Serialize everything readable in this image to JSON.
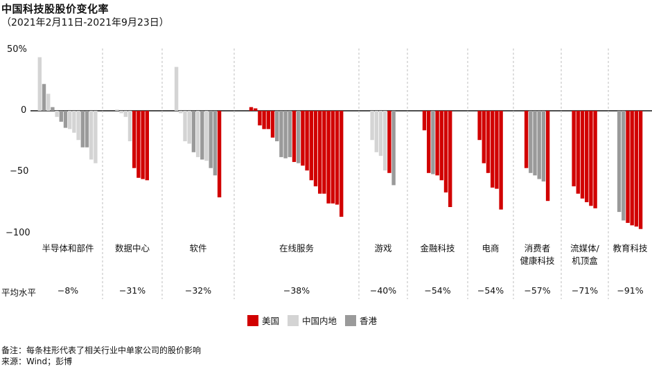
{
  "title": "中国科技股股价变化率",
  "subtitle": "（2021年2月11日-2021年9月23日）",
  "avg_label": "平均水平",
  "notes": [
    "备注：每条柱形代表了相关行业中单家公司的股价影响",
    "来源：Wind；彭博"
  ],
  "colors": {
    "美国": "#d10000",
    "中国内地": "#d4d4d4",
    "香港": "#9a9a9a"
  },
  "chart_data": {
    "type": "bar",
    "y_ticks": [
      "50%",
      "0",
      "−50",
      "−100"
    ],
    "ylim": [
      -100,
      50
    ],
    "legend": [
      "美国",
      "中国内地",
      "香港"
    ],
    "groups": [
      {
        "name": "半导体和部件",
        "average": "−8%",
        "bars": [
          [
            "中国内地",
            44
          ],
          [
            "香港",
            22
          ],
          [
            "中国内地",
            14
          ],
          [
            "香港",
            3
          ],
          [
            "中国内地",
            -5
          ],
          [
            "香港",
            -9
          ],
          [
            "香港",
            -14
          ],
          [
            "中国内地",
            -15
          ],
          [
            "中国内地",
            -18
          ],
          [
            "中国内地",
            -24
          ],
          [
            "香港",
            -30
          ],
          [
            "香港",
            -30
          ],
          [
            "中国内地",
            -40
          ],
          [
            "中国内地",
            -43
          ]
        ]
      },
      {
        "name": "数据中心",
        "average": "−31%",
        "bars": [
          [
            "中国内地",
            1
          ],
          [
            "中国内地",
            -2
          ],
          [
            "中国内地",
            -5
          ],
          [
            "中国内地",
            -25
          ],
          [
            "美国",
            -47
          ],
          [
            "美国",
            -55
          ],
          [
            "美国",
            -56
          ],
          [
            "美国",
            -57
          ]
        ]
      },
      {
        "name": "软件",
        "average": "−32%",
        "bars": [
          [
            "中国内地",
            36
          ],
          [
            "中国内地",
            -2
          ],
          [
            "中国内地",
            -25
          ],
          [
            "中国内地",
            -27
          ],
          [
            "香港",
            -34
          ],
          [
            "中国内地",
            -38
          ],
          [
            "香港",
            -40
          ],
          [
            "中国内地",
            -41
          ],
          [
            "香港",
            -47
          ],
          [
            "香港",
            -53
          ],
          [
            "美国",
            -71
          ]
        ]
      },
      {
        "name": "在线服务",
        "average": "−38%",
        "bars": [
          [
            "美国",
            3
          ],
          [
            "美国",
            2
          ],
          [
            "美国",
            -12
          ],
          [
            "美国",
            -15
          ],
          [
            "美国",
            -15
          ],
          [
            "美国",
            -22
          ],
          [
            "香港",
            -25
          ],
          [
            "香港",
            -38
          ],
          [
            "香港",
            -39
          ],
          [
            "香港",
            -38
          ],
          [
            "美国",
            -42
          ],
          [
            "香港",
            -43
          ],
          [
            "美国",
            -45
          ],
          [
            "美国",
            -49
          ],
          [
            "美国",
            -57
          ],
          [
            "美国",
            -62
          ],
          [
            "美国",
            -68
          ],
          [
            "美国",
            -68
          ],
          [
            "美国",
            -76
          ],
          [
            "美国",
            -76
          ],
          [
            "美国",
            -77
          ],
          [
            "美国",
            -87
          ]
        ]
      },
      {
        "name": "游戏",
        "average": "−40%",
        "bars": [
          [
            "中国内地",
            -24
          ],
          [
            "中国内地",
            -34
          ],
          [
            "中国内地",
            -37
          ],
          [
            "中国内地",
            -49
          ],
          [
            "美国",
            -51
          ],
          [
            "香港",
            -61
          ]
        ]
      },
      {
        "name": "金融科技",
        "average": "−54%",
        "bars": [
          [
            "美国",
            -16
          ],
          [
            "美国",
            -51
          ],
          [
            "香港",
            -52
          ],
          [
            "美国",
            -53
          ],
          [
            "美国",
            -57
          ],
          [
            "美国",
            -67
          ],
          [
            "美国",
            -79
          ]
        ]
      },
      {
        "name": "电商",
        "average": "−54%",
        "bars": [
          [
            "美国",
            -24
          ],
          [
            "美国",
            -43
          ],
          [
            "美国",
            -51
          ],
          [
            "美国",
            -63
          ],
          [
            "美国",
            -64
          ],
          [
            "美国",
            -81
          ]
        ]
      },
      {
        "name": "消费者\n健康科技",
        "average": "−57%",
        "bars": [
          [
            "美国",
            -47
          ],
          [
            "香港",
            -51
          ],
          [
            "香港",
            -53
          ],
          [
            "香港",
            -56
          ],
          [
            "香港",
            -58
          ],
          [
            "美国",
            -74
          ]
        ]
      },
      {
        "name": "流媒体/\n机顶盒",
        "average": "−71%",
        "bars": [
          [
            "美国",
            -62
          ],
          [
            "美国",
            -68
          ],
          [
            "美国",
            -72
          ],
          [
            "美国",
            -75
          ],
          [
            "美国",
            -78
          ],
          [
            "美国",
            -80
          ]
        ]
      },
      {
        "name": "教育科技",
        "average": "−91%",
        "bars": [
          [
            "香港",
            -83
          ],
          [
            "香港",
            -90
          ],
          [
            "美国",
            -92
          ],
          [
            "美国",
            -94
          ],
          [
            "美国",
            -95
          ],
          [
            "美国",
            -97
          ]
        ]
      }
    ]
  }
}
